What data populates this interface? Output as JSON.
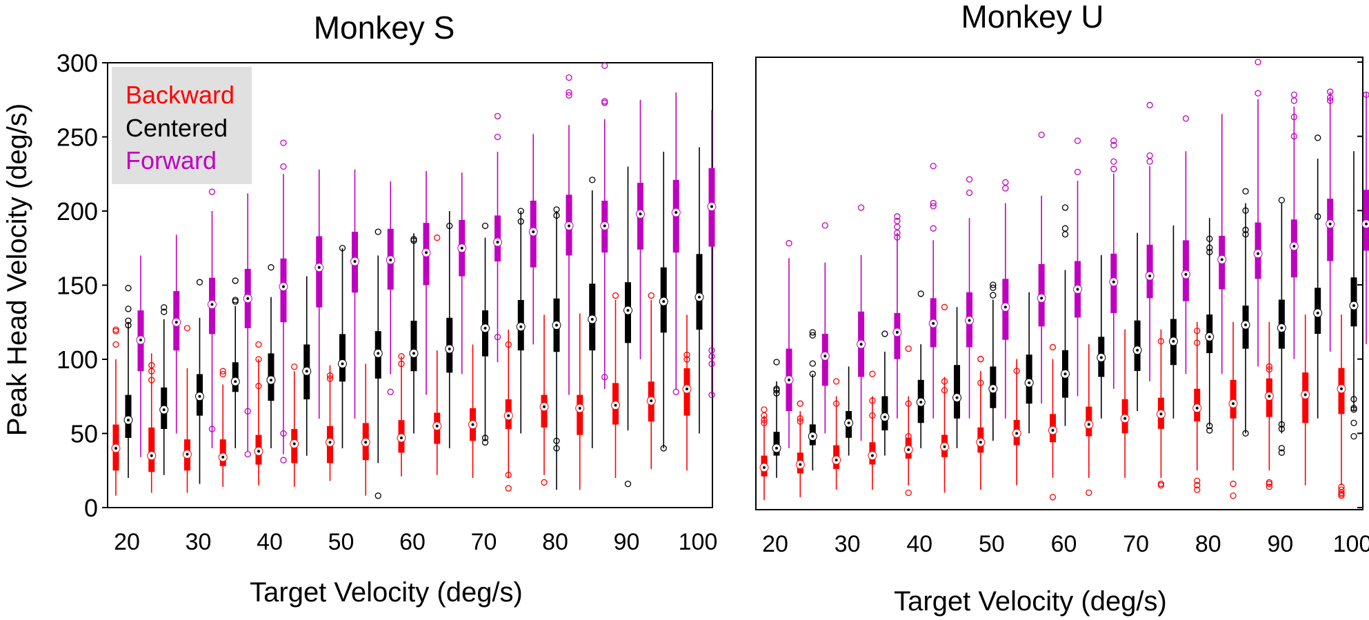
{
  "chart_data": [
    {
      "type": "box",
      "title": "Monkey S",
      "xlabel": "Target Velocity (deg/s)",
      "ylabel": "Peak Head Velocity (deg/s)",
      "ylim": [
        0,
        300
      ],
      "yticks": [
        "0",
        "50",
        "100",
        "150",
        "200",
        "250",
        "300"
      ],
      "categories": [
        "20",
        "25",
        "30",
        "35",
        "40",
        "45",
        "50",
        "55",
        "60",
        "65",
        "70",
        "75",
        "80",
        "85",
        "90",
        "95",
        "100"
      ],
      "xtick_labels": [
        "20",
        "30",
        "40",
        "50",
        "60",
        "70",
        "80",
        "90",
        "100"
      ],
      "legend": {
        "placement": "top-left",
        "background": "#e0e0e0",
        "entries": [
          "Backward",
          "Centered",
          "Forward"
        ]
      },
      "series": [
        {
          "name": "Backward",
          "color": "#ff0000",
          "median": [
            40,
            35,
            36,
            34,
            38,
            43,
            44,
            44,
            47,
            55,
            56,
            62,
            68,
            67,
            69,
            72,
            80
          ],
          "q1": [
            25,
            24,
            25,
            28,
            29,
            30,
            30,
            32,
            37,
            43,
            45,
            53,
            54,
            49,
            56,
            58,
            62
          ],
          "q3": [
            56,
            54,
            46,
            46,
            49,
            53,
            55,
            57,
            59,
            64,
            67,
            73,
            76,
            76,
            84,
            85,
            94
          ],
          "wlo": [
            8,
            10,
            10,
            14,
            15,
            14,
            18,
            8,
            21,
            22,
            20,
            20,
            22,
            12,
            20,
            26,
            25
          ],
          "whi": [
            100,
            104,
            94,
            83,
            100,
            92,
            96,
            97,
            102,
            106,
            110,
            120,
            130,
            131,
            140,
            140,
            130
          ],
          "outliers": [
            [
              110,
              119,
              120
            ],
            [
              96,
              92,
              86
            ],
            [
              121
            ],
            [
              92,
              90
            ],
            [
              110,
              100,
              82
            ],
            [
              95
            ],
            [
              89,
              87
            ],
            [],
            [
              102,
              97
            ],
            [
              182
            ],
            [],
            [
              110,
              22,
              13
            ],
            [
              17
            ],
            [],
            [
              143
            ],
            [
              143
            ],
            [
              103,
              100
            ]
          ]
        },
        {
          "name": "Centered",
          "color": "#000000",
          "median": [
            59,
            66,
            75,
            85,
            86,
            92,
            97,
            104,
            104,
            107,
            121,
            122,
            123,
            127,
            133,
            139,
            142
          ],
          "q1": [
            47,
            53,
            62,
            78,
            72,
            73,
            85,
            87,
            92,
            91,
            102,
            106,
            105,
            106,
            111,
            118,
            120
          ],
          "q3": [
            76,
            81,
            90,
            98,
            104,
            110,
            117,
            119,
            126,
            128,
            133,
            140,
            141,
            151,
            152,
            162,
            171
          ],
          "wlo": [
            20,
            22,
            16,
            40,
            40,
            35,
            40,
            30,
            50,
            40,
            45,
            50,
            12,
            40,
            52,
            40,
            50
          ],
          "whi": [
            125,
            127,
            128,
            136,
            142,
            156,
            175,
            170,
            185,
            200,
            182,
            200,
            200,
            214,
            230,
            240,
            243
          ],
          "outliers": [
            [
              148,
              134,
              126,
              123
            ],
            [
              135,
              132
            ],
            [
              152
            ],
            [
              153,
              140,
              139
            ],
            [
              162
            ],
            [],
            [
              175
            ],
            [
              186,
              8
            ],
            [
              181,
              180
            ],
            [
              190
            ],
            [
              190,
              47,
              44
            ],
            [
              200,
              193
            ],
            [
              201,
              197,
              45,
              40
            ],
            [
              221
            ],
            [
              16
            ],
            [
              40
            ],
            []
          ]
        },
        {
          "name": "Forward",
          "color": "#c000c0",
          "median": [
            113,
            125,
            137,
            141,
            149,
            162,
            166,
            167,
            172,
            175,
            179,
            186,
            190,
            190,
            198,
            199,
            203
          ],
          "q1": [
            92,
            106,
            117,
            121,
            125,
            135,
            145,
            147,
            150,
            156,
            166,
            162,
            170,
            172,
            174,
            172,
            176
          ],
          "q3": [
            133,
            146,
            155,
            161,
            168,
            183,
            186,
            188,
            192,
            194,
            197,
            207,
            211,
            207,
            219,
            221,
            229
          ],
          "wlo": [
            34,
            50,
            40,
            38,
            36,
            60,
            60,
            90,
            76,
            90,
            98,
            110,
            76,
            80,
            100,
            80,
            76
          ],
          "whi": [
            170,
            184,
            200,
            212,
            225,
            228,
            228,
            220,
            227,
            226,
            240,
            252,
            258,
            262,
            275,
            280,
            268
          ],
          "outliers": [
            [],
            [],
            [
              221,
              213,
              53
            ],
            [
              65,
              36
            ],
            [
              246,
              230,
              50,
              32
            ],
            [],
            [],
            [
              78
            ],
            [],
            [],
            [
              264,
              250,
              115
            ],
            [],
            [
              290,
              280,
              278
            ],
            [
              298,
              274,
              273,
              88
            ],
            [],
            [
              78
            ],
            [
              106,
              102,
              97,
              76
            ]
          ]
        }
      ]
    },
    {
      "type": "box",
      "title": "Monkey U",
      "xlabel": "Target Velocity (deg/s)",
      "ylabel": "",
      "ylim": [
        0,
        300
      ],
      "categories": [
        "20",
        "25",
        "30",
        "35",
        "40",
        "45",
        "50",
        "55",
        "60",
        "65",
        "70",
        "75",
        "80",
        "85",
        "90",
        "95",
        "100"
      ],
      "xtick_labels": [
        "20",
        "30",
        "40",
        "50",
        "60",
        "70",
        "80",
        "90",
        "100"
      ],
      "series": [
        {
          "name": "Backward",
          "color": "#ff0000",
          "median": [
            27,
            29,
            32,
            35,
            39,
            41,
            44,
            50,
            52,
            56,
            60,
            63,
            67,
            70,
            75,
            76,
            80
          ],
          "q1": [
            21,
            23,
            26,
            29,
            33,
            34,
            37,
            42,
            44,
            48,
            50,
            53,
            58,
            60,
            61,
            57,
            63
          ],
          "q3": [
            35,
            37,
            42,
            44,
            47,
            49,
            54,
            59,
            63,
            68,
            73,
            74,
            80,
            86,
            87,
            91,
            94
          ],
          "wlo": [
            5,
            7,
            12,
            12,
            15,
            10,
            12,
            15,
            20,
            20,
            20,
            20,
            25,
            25,
            25,
            15,
            15
          ],
          "whi": [
            62,
            65,
            75,
            75,
            75,
            88,
            92,
            100,
            100,
            110,
            120,
            120,
            125,
            125,
            125,
            130,
            130
          ],
          "outliers": [
            [
              66,
              62,
              59,
              57
            ],
            [
              70,
              70,
              60,
              58
            ],
            [
              85,
              70
            ],
            [
              90,
              72,
              62
            ],
            [
              107,
              70,
              48,
              10
            ],
            [
              135,
              85,
              79
            ],
            [
              100,
              100,
              84
            ],
            [
              92
            ],
            [
              108,
              7
            ],
            [
              10
            ],
            [],
            [
              112,
              16,
              15
            ],
            [
              119,
              111,
              18,
              15,
              12
            ],
            [
              16,
              8
            ],
            [
              95,
              93,
              17,
              16,
              14
            ],
            [],
            [
              14,
              12,
              10,
              9,
              8
            ]
          ]
        },
        {
          "name": "Centered",
          "color": "#000000",
          "median": [
            40,
            48,
            57,
            61,
            71,
            74,
            80,
            84,
            90,
            101,
            106,
            112,
            115,
            123,
            121,
            131,
            136
          ],
          "q1": [
            35,
            42,
            47,
            52,
            57,
            60,
            67,
            70,
            74,
            88,
            92,
            96,
            104,
            107,
            107,
            117,
            122
          ],
          "q3": [
            51,
            56,
            65,
            75,
            86,
            96,
            95,
            103,
            106,
            115,
            126,
            127,
            130,
            136,
            140,
            148,
            155
          ],
          "wlo": [
            20,
            25,
            35,
            35,
            40,
            40,
            45,
            50,
            55,
            60,
            65,
            60,
            55,
            50,
            50,
            60,
            65
          ],
          "whi": [
            85,
            90,
            95,
            105,
            110,
            135,
            140,
            145,
            160,
            170,
            185,
            190,
            195,
            205,
            205,
            235,
            240
          ],
          "outliers": [
            [
              98,
              80,
              79,
              77
            ],
            [
              118,
              116,
              97,
              90
            ],
            [],
            [
              117
            ],
            [
              144
            ],
            [],
            [
              150,
              148,
              143
            ],
            [],
            [
              202,
              188,
              184
            ],
            [],
            [],
            [],
            [
              181,
              175,
              172,
              55,
              52
            ],
            [
              213,
              200,
              187,
              184,
              50
            ],
            [
              207,
              56,
              53,
              40,
              37
            ],
            [
              249,
              196
            ],
            [
              73,
              67,
              66,
              57,
              48
            ]
          ]
        },
        {
          "name": "Forward",
          "color": "#c000c0",
          "median": [
            86,
            102,
            110,
            118,
            124,
            126,
            135,
            141,
            147,
            152,
            156,
            157,
            167,
            171,
            176,
            191,
            191
          ],
          "q1": [
            65,
            82,
            88,
            100,
            108,
            108,
            113,
            122,
            128,
            131,
            141,
            139,
            147,
            154,
            155,
            166,
            173
          ],
          "q3": [
            107,
            117,
            132,
            131,
            141,
            145,
            154,
            164,
            166,
            171,
            177,
            180,
            183,
            192,
            194,
            208,
            214
          ],
          "wlo": [
            40,
            50,
            45,
            60,
            60,
            60,
            60,
            70,
            75,
            80,
            85,
            90,
            90,
            95,
            100,
            105,
            110
          ],
          "whi": [
            168,
            165,
            170,
            185,
            180,
            195,
            205,
            210,
            220,
            225,
            230,
            240,
            265,
            275,
            270,
            280,
            280
          ],
          "outliers": [
            [
              178
            ],
            [
              190
            ],
            [
              202
            ],
            [
              196,
              193,
              189,
              185,
              182
            ],
            [
              230,
              205,
              203,
              188
            ],
            [
              221,
              212
            ],
            [
              219,
              215
            ],
            [
              251
            ],
            [
              247,
              226
            ],
            [
              247,
              244,
              233,
              228
            ],
            [
              271,
              237,
              233
            ],
            [
              262
            ],
            [],
            [
              300,
              279
            ],
            [
              278,
              274,
              263,
              250
            ],
            [
              280,
              276,
              274
            ],
            [
              278
            ]
          ]
        }
      ]
    }
  ]
}
